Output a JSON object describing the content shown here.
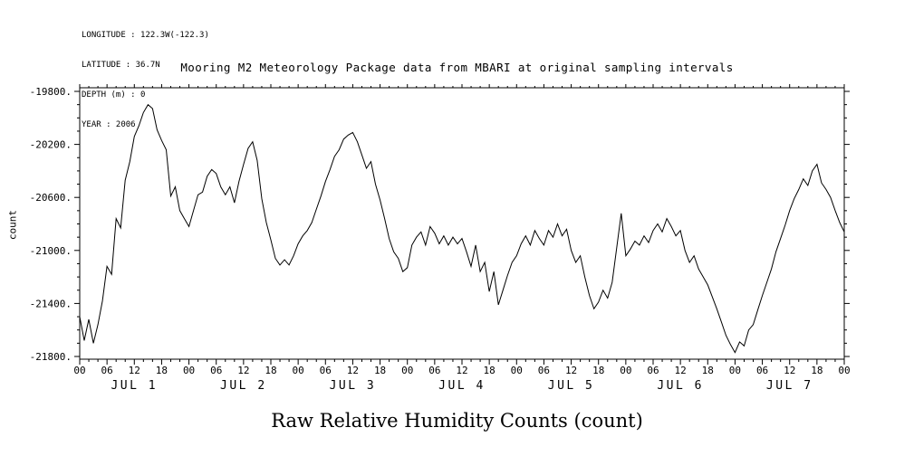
{
  "header": {
    "longitude": "LONGITUDE : 122.3W(-122.3)",
    "latitude": "LATITUDE : 36.7N",
    "depth": "DEPTH (m) : 0",
    "year": "YEAR : 2006"
  },
  "title": "Mooring M2 Meteorology Package data from MBARI  at original sampling intervals",
  "bottom_title": "Raw Relative Humidity Counts (count)",
  "colors": {
    "line": "#000000",
    "axis": "#000000",
    "background": "#ffffff"
  },
  "chart_data": {
    "type": "line",
    "title": "Mooring M2 Meteorology Package data from MBARI  at original sampling intervals",
    "xlabel": "Raw Relative Humidity Counts (count)",
    "ylabel": "count",
    "grid": false,
    "legend": false,
    "ylim": [
      -21800,
      -19800
    ],
    "y_tick_values": [
      -19800,
      -20200,
      -20600,
      -21000,
      -21400,
      -21800
    ],
    "y_tick_labels": [
      "-19800.",
      "-20200.",
      "-20600.",
      "-21000.",
      "-21400.",
      "-21800."
    ],
    "y_minor_tick_step": 100,
    "x_start_hour": 0,
    "x_end_hour": 168,
    "sample_interval_hours": 1,
    "x_tick_interval_hours": 6,
    "x_tick_labels": [
      "00",
      "06",
      "12",
      "18",
      "00",
      "06",
      "12",
      "18",
      "00",
      "06",
      "12",
      "18",
      "00",
      "06",
      "12",
      "18",
      "00",
      "06",
      "12",
      "18",
      "00",
      "06",
      "12",
      "18",
      "00",
      "06",
      "12",
      "18",
      "00"
    ],
    "day_labels": [
      "JUL 1",
      "JUL 2",
      "JUL 3",
      "JUL 4",
      "JUL 5",
      "JUL 6",
      "JUL 7"
    ],
    "values": [
      -21500,
      -21680,
      -21520,
      -21700,
      -21560,
      -21380,
      -21120,
      -21180,
      -20760,
      -20830,
      -20470,
      -20330,
      -20140,
      -20060,
      -19960,
      -19900,
      -19930,
      -20090,
      -20170,
      -20240,
      -20590,
      -20520,
      -20700,
      -20760,
      -20820,
      -20700,
      -20580,
      -20560,
      -20440,
      -20390,
      -20420,
      -20520,
      -20580,
      -20520,
      -20640,
      -20480,
      -20350,
      -20230,
      -20180,
      -20320,
      -20610,
      -20790,
      -20920,
      -21060,
      -21110,
      -21070,
      -21110,
      -21040,
      -20950,
      -20890,
      -20850,
      -20790,
      -20690,
      -20590,
      -20480,
      -20390,
      -20290,
      -20240,
      -20160,
      -20130,
      -20110,
      -20180,
      -20280,
      -20380,
      -20330,
      -20500,
      -20620,
      -20760,
      -20910,
      -21010,
      -21060,
      -21160,
      -21130,
      -20960,
      -20900,
      -20860,
      -20960,
      -20820,
      -20870,
      -20950,
      -20890,
      -20960,
      -20900,
      -20950,
      -20910,
      -21010,
      -21120,
      -20960,
      -21160,
      -21090,
      -21310,
      -21160,
      -21410,
      -21300,
      -21190,
      -21090,
      -21040,
      -20950,
      -20890,
      -20960,
      -20850,
      -20910,
      -20960,
      -20850,
      -20900,
      -20800,
      -20890,
      -20840,
      -21000,
      -21090,
      -21040,
      -21200,
      -21340,
      -21440,
      -21390,
      -21300,
      -21360,
      -21240,
      -20980,
      -20720,
      -21040,
      -20990,
      -20930,
      -20960,
      -20890,
      -20940,
      -20850,
      -20800,
      -20860,
      -20760,
      -20820,
      -20890,
      -20850,
      -21000,
      -21090,
      -21040,
      -21140,
      -21200,
      -21260,
      -21350,
      -21440,
      -21540,
      -21640,
      -21710,
      -21770,
      -21690,
      -21720,
      -21600,
      -21560,
      -21450,
      -21340,
      -21240,
      -21140,
      -21010,
      -20910,
      -20810,
      -20700,
      -20610,
      -20540,
      -20460,
      -20510,
      -20400,
      -20350,
      -20490,
      -20540,
      -20600,
      -20700,
      -20790,
      -20860
    ]
  }
}
